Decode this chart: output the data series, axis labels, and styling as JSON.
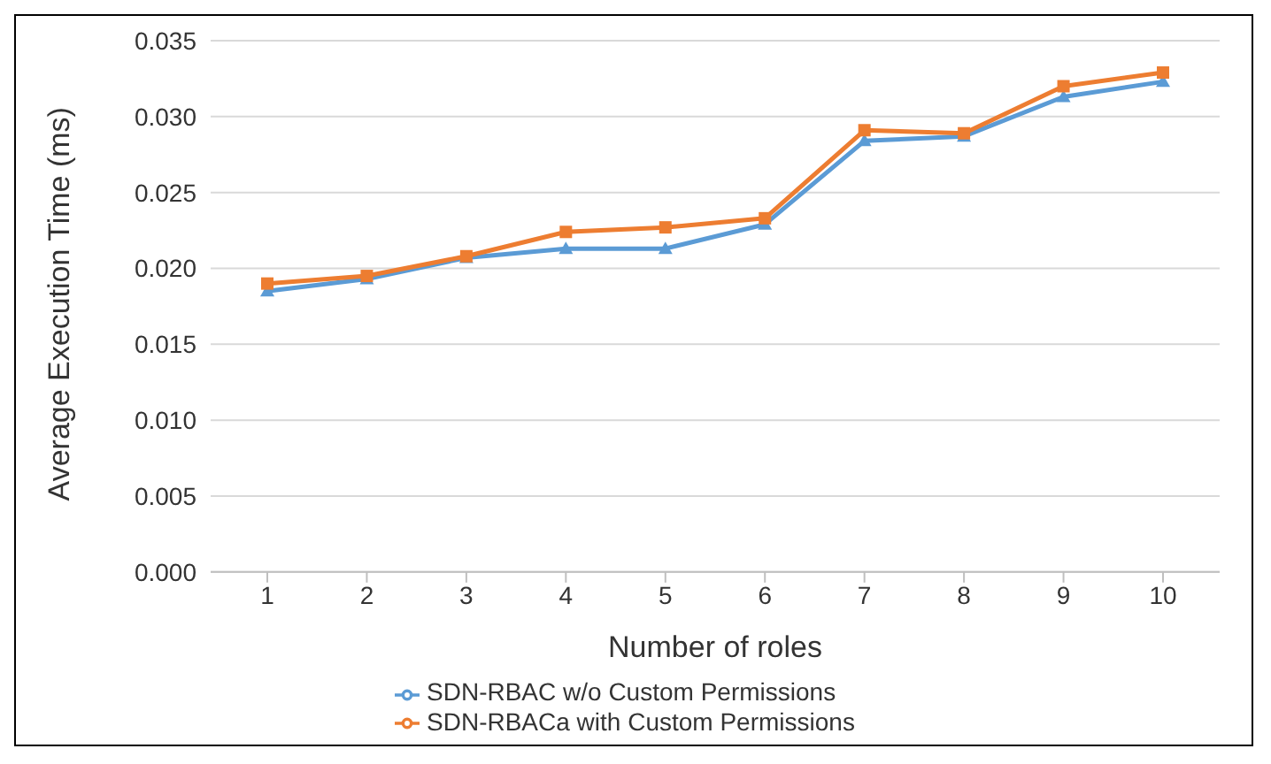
{
  "chart_data": {
    "type": "line",
    "xlabel": "Number of roles",
    "ylabel": "Average Execution Time (ms)",
    "categories": [
      "1",
      "2",
      "3",
      "4",
      "5",
      "6",
      "7",
      "8",
      "9",
      "10"
    ],
    "series": [
      {
        "name": "SDN-RBAC w/o Custom Permissions",
        "color": "#5b9bd5",
        "marker": "triangle",
        "values": [
          0.0185,
          0.0193,
          0.0207,
          0.0213,
          0.0213,
          0.0229,
          0.0284,
          0.0287,
          0.0313,
          0.0323
        ]
      },
      {
        "name": "SDN-RBACa with Custom Permissions",
        "color": "#ed7d31",
        "marker": "square",
        "values": [
          0.019,
          0.0195,
          0.0208,
          0.0224,
          0.0227,
          0.0233,
          0.0291,
          0.0289,
          0.032,
          0.0329
        ]
      }
    ],
    "ylim": [
      0,
      0.035
    ],
    "yticks": [
      {
        "value": 0,
        "label": "0.000"
      },
      {
        "value": 0.005,
        "label": "0.005"
      },
      {
        "value": 0.01,
        "label": "0.010"
      },
      {
        "value": 0.015,
        "label": "0.015"
      },
      {
        "value": 0.02,
        "label": "0.020"
      },
      {
        "value": 0.025,
        "label": "0.025"
      },
      {
        "value": 0.03,
        "label": "0.030"
      },
      {
        "value": 0.035,
        "label": "0.035"
      }
    ],
    "grid": "y",
    "legend": "bottom",
    "line_style": "solid"
  }
}
